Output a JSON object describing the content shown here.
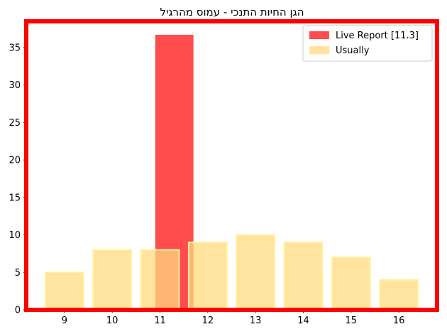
{
  "chart_data": {
    "type": "bar",
    "title": "הגן החיות התנכי - עמוס מהרגיל",
    "xlabel": "",
    "ylabel": "",
    "xlim": [
      8.2,
      16.8
    ],
    "ylim": [
      0,
      38.5
    ],
    "x_ticks": [
      "9",
      "10",
      "11",
      "12",
      "13",
      "14",
      "15",
      "16"
    ],
    "y_ticks": [
      "0",
      "5",
      "10",
      "15",
      "20",
      "25",
      "30",
      "35"
    ],
    "series": [
      {
        "name": "Live Report [11.3]",
        "color": "#ff4d4d",
        "bars": [
          {
            "x": 11.3,
            "value": 36.7
          }
        ]
      },
      {
        "name": "Usually",
        "color": "#ffd97f",
        "edge_color": "#fff3a0",
        "bars": [
          {
            "x": 9,
            "value": 5
          },
          {
            "x": 10,
            "value": 8
          },
          {
            "x": 11,
            "value": 8
          },
          {
            "x": 12,
            "value": 9
          },
          {
            "x": 13,
            "value": 10
          },
          {
            "x": 14,
            "value": 9
          },
          {
            "x": 15,
            "value": 7
          },
          {
            "x": 16,
            "value": 4
          }
        ]
      }
    ],
    "legend_position": "top-right",
    "frame_color": "#ff0000",
    "grid": false
  }
}
